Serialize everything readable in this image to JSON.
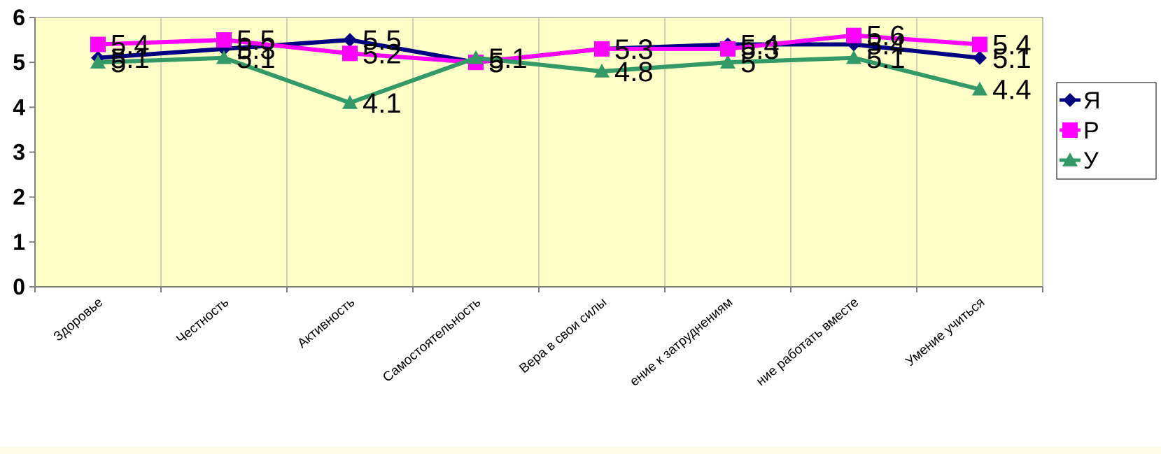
{
  "chart_data": {
    "type": "line",
    "title": "",
    "xlabel": "",
    "ylabel": "",
    "ylim": [
      0,
      6
    ],
    "yticks": [
      "0",
      "1",
      "2",
      "3",
      "4",
      "5",
      "6"
    ],
    "grid": "vertical",
    "legend_position": "right",
    "plot_background": "#ffffc8",
    "categories": [
      "Здоровье",
      "Честность",
      "Активность",
      "Самостоятельность",
      "Вера в свои силы",
      "ение к затруднениям",
      "ние работать вместе",
      "Умение учиться"
    ],
    "series": [
      {
        "name": "Я",
        "color": "#000080",
        "marker": "diamond",
        "values": [
          5.1,
          5.3,
          5.5,
          5.0,
          5.3,
          5.4,
          5.4,
          5.1
        ]
      },
      {
        "name": "Р",
        "color": "#ff00ff",
        "marker": "square",
        "values": [
          5.4,
          5.5,
          5.2,
          5.0,
          5.3,
          5.3,
          5.6,
          5.4
        ]
      },
      {
        "name": "У",
        "color": "#339966",
        "marker": "triangle",
        "values": [
          5.0,
          5.1,
          4.1,
          5.1,
          4.8,
          5.0,
          5.1,
          4.4
        ]
      }
    ],
    "data_labels": {
      "Я": [
        "5.1",
        "5.3",
        "5.5",
        "5",
        "5.3",
        "5.4",
        "5.4",
        "5.1"
      ],
      "Р": [
        "5.4",
        "5.5",
        "5.2",
        "5",
        "5.3",
        "5.3",
        "5.6",
        "5.4"
      ],
      "У": [
        "5",
        "5.1",
        "4.1",
        "5.1",
        "4.8",
        "5",
        "5.1",
        "4.4"
      ]
    }
  }
}
